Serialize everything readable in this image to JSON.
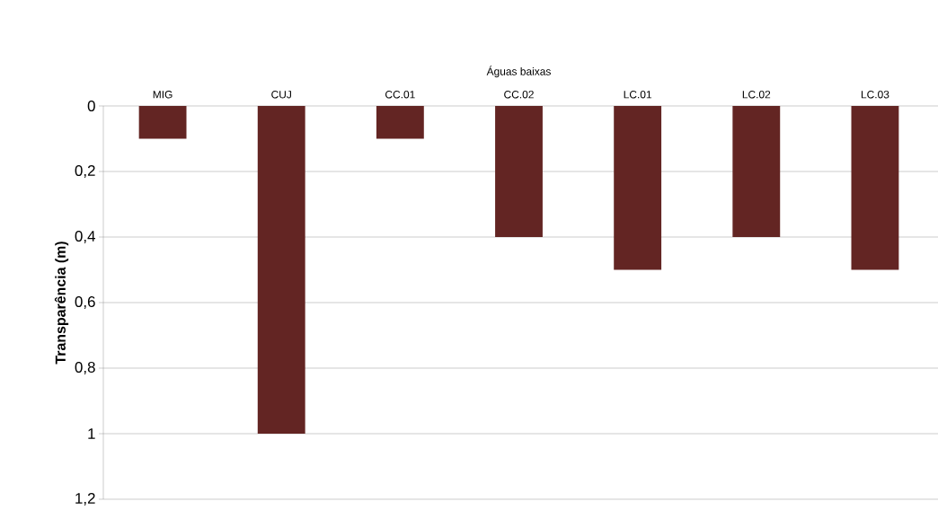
{
  "chart_data": {
    "type": "bar",
    "xlabel": "Águas baixas",
    "ylabel": "Transparência (m)",
    "categories": [
      "MIG",
      "CUJ",
      "CC.01",
      "CC.02",
      "LC.01",
      "LC.02",
      "LC.03"
    ],
    "values": [
      0.1,
      1,
      0.1,
      0.4,
      0.5,
      0.4,
      0.5
    ],
    "color": "#632523",
    "ylim": [
      1.2,
      0
    ],
    "yticks": [
      {
        "value": 0,
        "label": "0"
      },
      {
        "value": 0.2,
        "label": "0,2"
      },
      {
        "value": 0.4,
        "label": "0,4"
      },
      {
        "value": 0.6,
        "label": "0,6"
      },
      {
        "value": 0.8,
        "label": "0,8"
      },
      {
        "value": 1,
        "label": "1"
      },
      {
        "value": 1.2,
        "label": "1,2"
      }
    ],
    "grid": "y"
  }
}
